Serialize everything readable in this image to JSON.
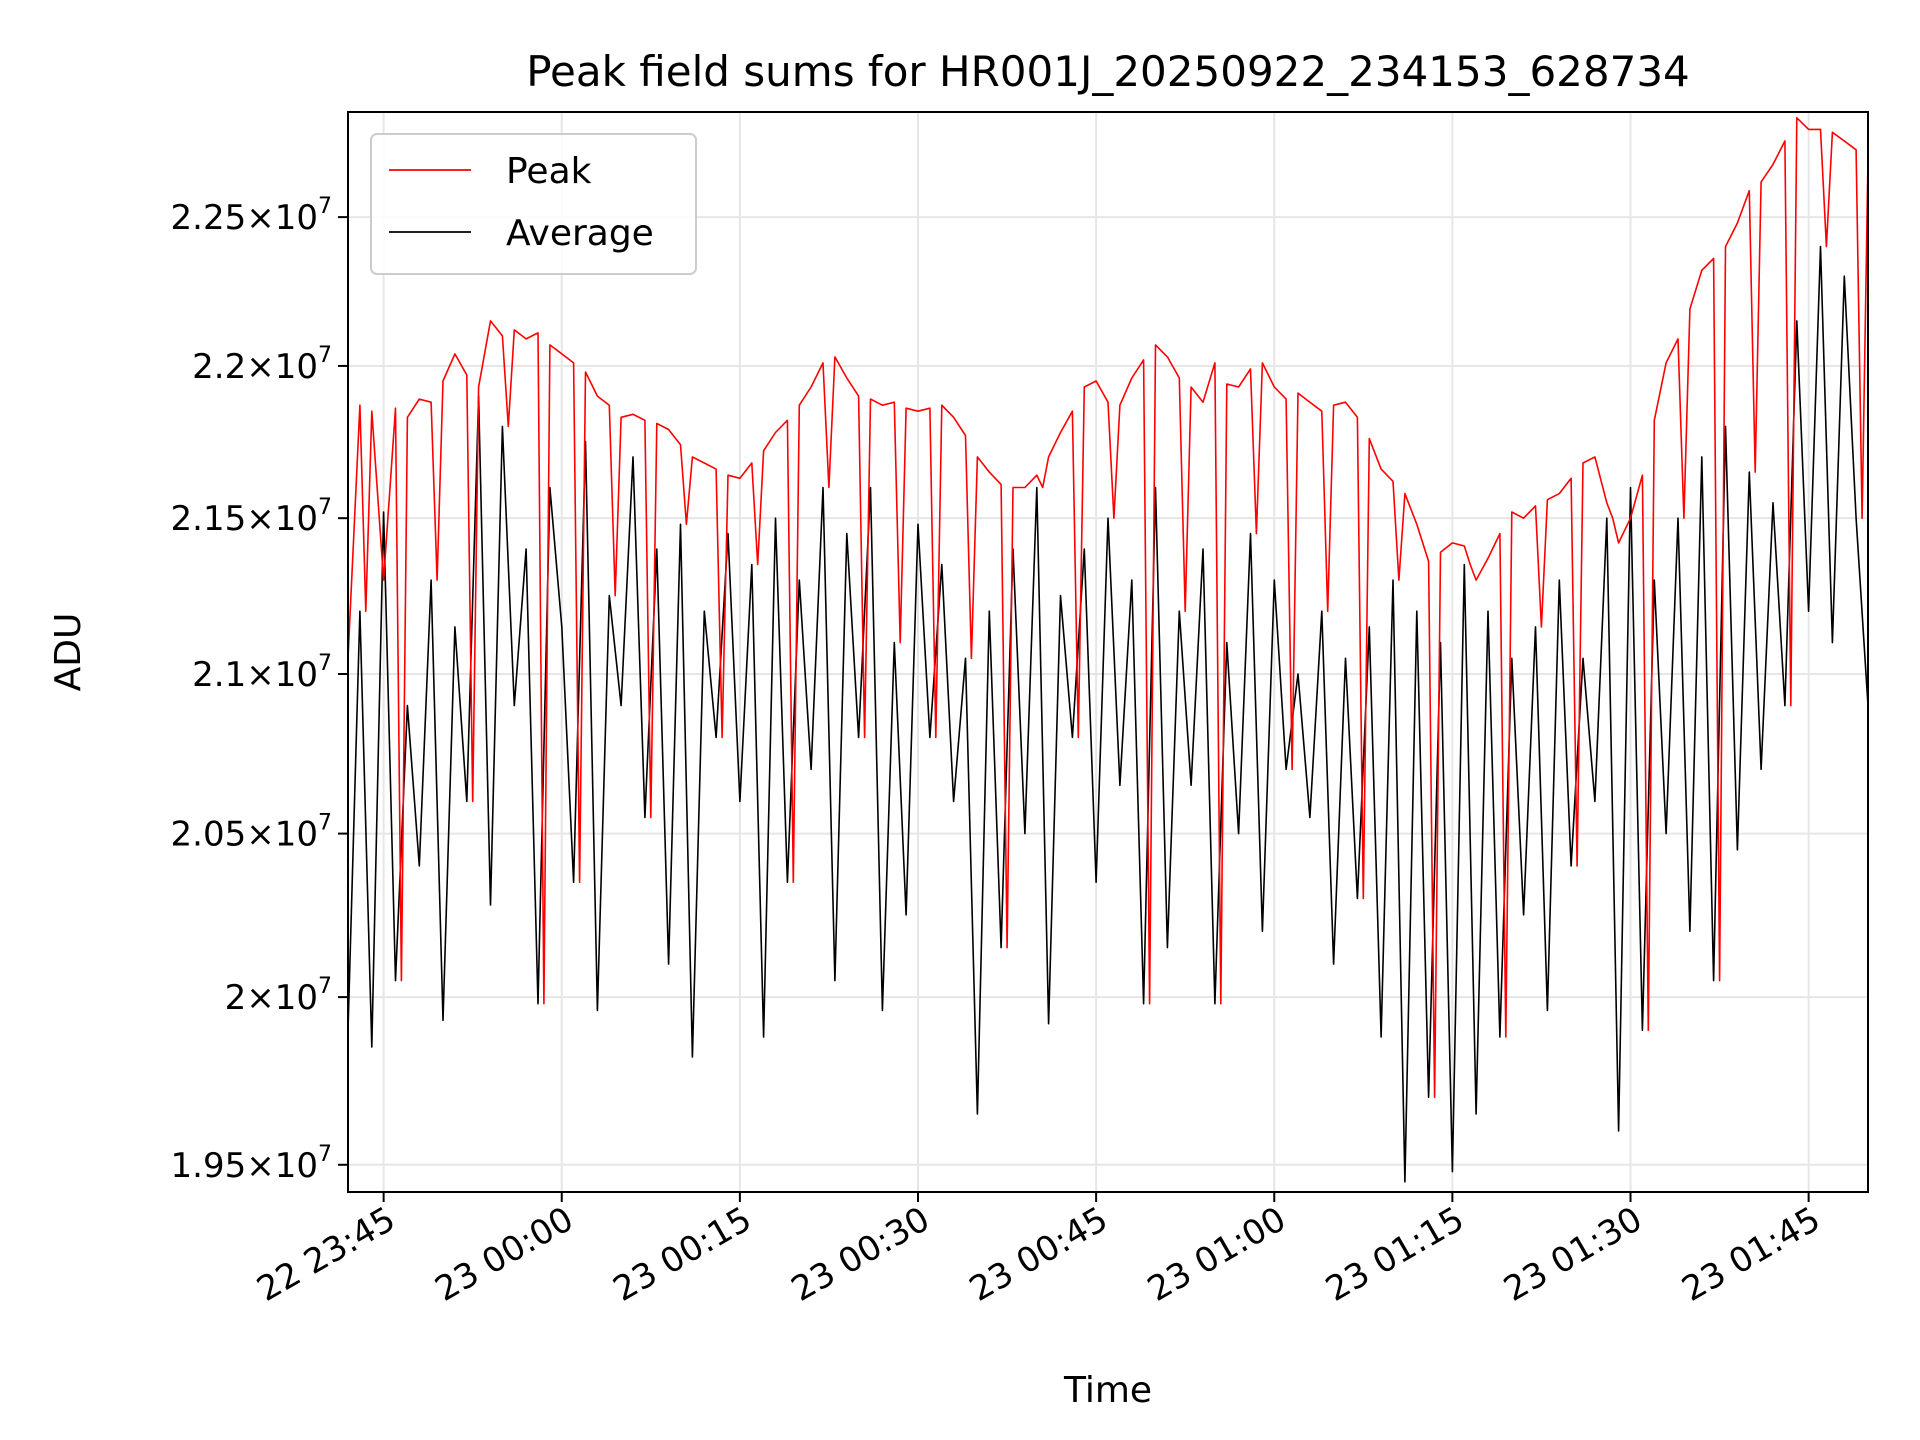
{
  "chart_data": {
    "type": "line",
    "title": "Peak field sums for HR001J_20250922_234153_628734",
    "xlabel": "Time",
    "ylabel": "ADU",
    "grid": true,
    "legend_position": "top-left",
    "y_scale": "log",
    "ylim": [
      19420000,
      22860000
    ],
    "xlim": [
      "2025-09-22 23:42:00",
      "2025-09-23 01:50:00"
    ],
    "x_ticks": [
      {
        "value": "2025-09-22 23:45:00",
        "label": "22 23:45"
      },
      {
        "value": "2025-09-23 00:00:00",
        "label": "23 00:00"
      },
      {
        "value": "2025-09-23 00:15:00",
        "label": "23 00:15"
      },
      {
        "value": "2025-09-23 00:30:00",
        "label": "23 00:30"
      },
      {
        "value": "2025-09-23 00:45:00",
        "label": "23 00:45"
      },
      {
        "value": "2025-09-23 01:00:00",
        "label": "23 01:00"
      },
      {
        "value": "2025-09-23 01:15:00",
        "label": "23 01:15"
      },
      {
        "value": "2025-09-23 01:30:00",
        "label": "23 01:30"
      },
      {
        "value": "2025-09-23 01:45:00",
        "label": "23 01:45"
      }
    ],
    "y_ticks": [
      {
        "value": 19500000,
        "mantissa": "1.95",
        "exponent": "7"
      },
      {
        "value": 20000000,
        "mantissa": "2",
        "exponent": "7"
      },
      {
        "value": 20500000,
        "mantissa": "2.05",
        "exponent": "7"
      },
      {
        "value": 21000000,
        "mantissa": "2.1",
        "exponent": "7"
      },
      {
        "value": 21500000,
        "mantissa": "2.15",
        "exponent": "7"
      },
      {
        "value": 22000000,
        "mantissa": "2.2",
        "exponent": "7"
      },
      {
        "value": 22500000,
        "mantissa": "2.25",
        "exponent": "7"
      }
    ],
    "series": [
      {
        "name": "Peak",
        "color": "#ff0000",
        "x": [
          "2025-09-22 23:42:00",
          "2025-09-22 23:43:00",
          "2025-09-22 23:44:00",
          "2025-09-22 23:45:00",
          "2025-09-22 23:46:00",
          "2025-09-22 23:47:00",
          "2025-09-22 23:48:00",
          "2025-09-22 23:49:00",
          "2025-09-22 23:50:00",
          "2025-09-22 23:51:00",
          "2025-09-22 23:52:00",
          "2025-09-22 23:53:00",
          "2025-09-22 23:54:00",
          "2025-09-22 23:55:00",
          "2025-09-22 23:56:00",
          "2025-09-22 23:57:00",
          "2025-09-22 23:58:00",
          "2025-09-22 23:59:00",
          "2025-09-23 00:00:00",
          "2025-09-23 00:01:00",
          "2025-09-23 00:02:00",
          "2025-09-23 00:03:00",
          "2025-09-23 00:04:00",
          "2025-09-23 00:05:00",
          "2025-09-23 00:06:00",
          "2025-09-23 00:07:00",
          "2025-09-23 00:08:00",
          "2025-09-23 00:09:00",
          "2025-09-23 00:10:00",
          "2025-09-23 00:11:00",
          "2025-09-23 00:12:00",
          "2025-09-23 00:13:00",
          "2025-09-23 00:14:00",
          "2025-09-23 00:15:00",
          "2025-09-23 00:16:00",
          "2025-09-23 00:17:00",
          "2025-09-23 00:18:00",
          "2025-09-23 00:19:00",
          "2025-09-23 00:20:00",
          "2025-09-23 00:21:00",
          "2025-09-23 00:22:00",
          "2025-09-23 00:23:00",
          "2025-09-23 00:24:00",
          "2025-09-23 00:25:00",
          "2025-09-23 00:26:00",
          "2025-09-23 00:27:00",
          "2025-09-23 00:28:00",
          "2025-09-23 00:29:00",
          "2025-09-23 00:30:00",
          "2025-09-23 00:31:00",
          "2025-09-23 00:32:00",
          "2025-09-23 00:33:00",
          "2025-09-23 00:34:00",
          "2025-09-23 00:35:00",
          "2025-09-23 00:36:00",
          "2025-09-23 00:37:00",
          "2025-09-23 00:38:00",
          "2025-09-23 00:39:00",
          "2025-09-23 00:40:00",
          "2025-09-23 00:41:00",
          "2025-09-23 00:42:00",
          "2025-09-23 00:43:00",
          "2025-09-23 00:44:00",
          "2025-09-23 00:45:00",
          "2025-09-23 00:46:00",
          "2025-09-23 00:47:00",
          "2025-09-23 00:48:00",
          "2025-09-23 00:49:00",
          "2025-09-23 00:50:00",
          "2025-09-23 00:51:00",
          "2025-09-23 00:52:00",
          "2025-09-23 00:53:00",
          "2025-09-23 00:54:00",
          "2025-09-23 00:55:00",
          "2025-09-23 00:56:00",
          "2025-09-23 00:57:00",
          "2025-09-23 00:58:00",
          "2025-09-23 00:59:00",
          "2025-09-23 01:00:00",
          "2025-09-23 01:01:00",
          "2025-09-23 01:02:00",
          "2025-09-23 01:03:00",
          "2025-09-23 01:04:00",
          "2025-09-23 01:05:00",
          "2025-09-23 01:06:00",
          "2025-09-23 01:07:00",
          "2025-09-23 01:08:00",
          "2025-09-23 01:09:00",
          "2025-09-23 01:10:00",
          "2025-09-23 01:11:00",
          "2025-09-23 01:12:00",
          "2025-09-23 01:13:00",
          "2025-09-23 01:14:00",
          "2025-09-23 01:15:00",
          "2025-09-23 01:16:00",
          "2025-09-23 01:17:00",
          "2025-09-23 01:18:00",
          "2025-09-23 01:19:00",
          "2025-09-23 01:20:00",
          "2025-09-23 01:21:00",
          "2025-09-23 01:22:00",
          "2025-09-23 01:23:00",
          "2025-09-23 01:24:00",
          "2025-09-23 01:25:00",
          "2025-09-23 01:26:00",
          "2025-09-23 01:27:00",
          "2025-09-23 01:28:00",
          "2025-09-23 01:29:00",
          "2025-09-23 01:30:00",
          "2025-09-23 01:31:00",
          "2025-09-23 01:32:00",
          "2025-09-23 01:33:00",
          "2025-09-23 01:34:00",
          "2025-09-23 01:35:00",
          "2025-09-23 01:36:00",
          "2025-09-23 01:37:00",
          "2025-09-23 01:38:00",
          "2025-09-23 01:39:00",
          "2025-09-23 01:40:00",
          "2025-09-23 01:41:00",
          "2025-09-23 01:42:00",
          "2025-09-23 01:43:00",
          "2025-09-23 01:44:00",
          "2025-09-23 01:45:00",
          "2025-09-23 01:46:00",
          "2025-09-23 01:47:00",
          "2025-09-23 01:48:00",
          "2025-09-23 01:49:00",
          "2025-09-23 01:50:00"
        ],
        "values": [
          21050000,
          21870000,
          21850000,
          21300000,
          21860000,
          21830000,
          21890000,
          21880000,
          21950000,
          22040000,
          21970000,
          21930000,
          22150000,
          22100000,
          22120000,
          22090000,
          22110000,
          22070000,
          22040000,
          22010000,
          21980000,
          21900000,
          21870000,
          21830000,
          21840000,
          21820000,
          21810000,
          21790000,
          21740000,
          21700000,
          21680000,
          21660000,
          21640000,
          21630000,
          21680000,
          21720000,
          21780000,
          21820000,
          21870000,
          21930000,
          22010000,
          22030000,
          21960000,
          21900000,
          21890000,
          21870000,
          21880000,
          21860000,
          21850000,
          21860000,
          21870000,
          21830000,
          21770000,
          21700000,
          21650000,
          21610000,
          21600000,
          21600000,
          21640000,
          21700000,
          21780000,
          21850000,
          21930000,
          21950000,
          21880000,
          21870000,
          21960000,
          22020000,
          22070000,
          22030000,
          21960000,
          21930000,
          21880000,
          22010000,
          21940000,
          21930000,
          21990000,
          22010000,
          21930000,
          21890000,
          21910000,
          21880000,
          21850000,
          21870000,
          21880000,
          21830000,
          21760000,
          21660000,
          21620000,
          21580000,
          21480000,
          21360000,
          21390000,
          21420000,
          21410000,
          21300000,
          21370000,
          21450000,
          21520000,
          21500000,
          21540000,
          21560000,
          21580000,
          21630000,
          21680000,
          21700000,
          21550000,
          21420000,
          21500000,
          21640000,
          21820000,
          22010000,
          22090000,
          22190000,
          22320000,
          22360000,
          22400000,
          22480000,
          22590000,
          22620000,
          22680000,
          22760000,
          22840000,
          22800000,
          22800000,
          22790000,
          22760000,
          22730000,
          22700000
        ],
        "show_dips": true
      },
      {
        "name": "Average",
        "color": "#000000",
        "x": [
          "2025-09-22 23:42:00",
          "2025-09-22 23:43:00",
          "2025-09-22 23:44:00",
          "2025-09-22 23:45:00",
          "2025-09-22 23:46:00",
          "2025-09-22 23:47:00",
          "2025-09-22 23:48:00",
          "2025-09-22 23:49:00",
          "2025-09-22 23:50:00",
          "2025-09-22 23:51:00",
          "2025-09-22 23:52:00",
          "2025-09-22 23:53:00",
          "2025-09-22 23:54:00",
          "2025-09-22 23:55:00",
          "2025-09-22 23:56:00",
          "2025-09-22 23:57:00",
          "2025-09-22 23:58:00",
          "2025-09-22 23:59:00",
          "2025-09-23 00:00:00",
          "2025-09-23 00:01:00",
          "2025-09-23 00:02:00",
          "2025-09-23 00:03:00",
          "2025-09-23 00:04:00",
          "2025-09-23 00:05:00",
          "2025-09-23 00:06:00",
          "2025-09-23 00:07:00",
          "2025-09-23 00:08:00",
          "2025-09-23 00:09:00",
          "2025-09-23 00:10:00",
          "2025-09-23 00:11:00",
          "2025-09-23 00:12:00",
          "2025-09-23 00:13:00",
          "2025-09-23 00:14:00",
          "2025-09-23 00:15:00",
          "2025-09-23 00:16:00",
          "2025-09-23 00:17:00",
          "2025-09-23 00:18:00",
          "2025-09-23 00:19:00",
          "2025-09-23 00:20:00",
          "2025-09-23 00:21:00",
          "2025-09-23 00:22:00",
          "2025-09-23 00:23:00",
          "2025-09-23 00:24:00",
          "2025-09-23 00:25:00",
          "2025-09-23 00:26:00",
          "2025-09-23 00:27:00",
          "2025-09-23 00:28:00",
          "2025-09-23 00:29:00",
          "2025-09-23 00:30:00",
          "2025-09-23 00:31:00",
          "2025-09-23 00:32:00",
          "2025-09-23 00:33:00",
          "2025-09-23 00:34:00",
          "2025-09-23 00:35:00",
          "2025-09-23 00:36:00",
          "2025-09-23 00:37:00",
          "2025-09-23 00:38:00",
          "2025-09-23 00:39:00",
          "2025-09-23 00:40:00",
          "2025-09-23 00:41:00",
          "2025-09-23 00:42:00",
          "2025-09-23 00:43:00",
          "2025-09-23 00:44:00",
          "2025-09-23 00:45:00",
          "2025-09-23 00:46:00",
          "2025-09-23 00:47:00",
          "2025-09-23 00:48:00",
          "2025-09-23 00:49:00",
          "2025-09-23 00:50:00",
          "2025-09-23 00:51:00",
          "2025-09-23 00:52:00",
          "2025-09-23 00:53:00",
          "2025-09-23 00:54:00",
          "2025-09-23 00:55:00",
          "2025-09-23 00:56:00",
          "2025-09-23 00:57:00",
          "2025-09-23 00:58:00",
          "2025-09-23 00:59:00",
          "2025-09-23 01:00:00",
          "2025-09-23 01:01:00",
          "2025-09-23 01:02:00",
          "2025-09-23 01:03:00",
          "2025-09-23 01:04:00",
          "2025-09-23 01:05:00",
          "2025-09-23 01:06:00",
          "2025-09-23 01:07:00",
          "2025-09-23 01:08:00",
          "2025-09-23 01:09:00",
          "2025-09-23 01:10:00",
          "2025-09-23 01:11:00",
          "2025-09-23 01:12:00",
          "2025-09-23 01:13:00",
          "2025-09-23 01:14:00",
          "2025-09-23 01:15:00",
          "2025-09-23 01:16:00",
          "2025-09-23 01:17:00",
          "2025-09-23 01:18:00",
          "2025-09-23 01:19:00",
          "2025-09-23 01:20:00",
          "2025-09-23 01:21:00",
          "2025-09-23 01:22:00",
          "2025-09-23 01:23:00",
          "2025-09-23 01:24:00",
          "2025-09-23 01:25:00",
          "2025-09-23 01:26:00",
          "2025-09-23 01:27:00",
          "2025-09-23 01:28:00",
          "2025-09-23 01:29:00",
          "2025-09-23 01:30:00",
          "2025-09-23 01:31:00",
          "2025-09-23 01:32:00",
          "2025-09-23 01:33:00",
          "2025-09-23 01:34:00",
          "2025-09-23 01:35:00",
          "2025-09-23 01:36:00",
          "2025-09-23 01:37:00",
          "2025-09-23 01:38:00",
          "2025-09-23 01:39:00",
          "2025-09-23 01:40:00",
          "2025-09-23 01:41:00",
          "2025-09-23 01:42:00",
          "2025-09-23 01:43:00",
          "2025-09-23 01:44:00",
          "2025-09-23 01:45:00",
          "2025-09-23 01:46:00",
          "2025-09-23 01:47:00",
          "2025-09-23 01:48:00",
          "2025-09-23 01:49:00",
          "2025-09-23 01:50:00"
        ],
        "values": [
          19900000,
          21200000,
          19850000,
          21520000,
          20050000,
          20900000,
          20400000,
          21300000,
          19930000,
          21150000,
          20600000,
          21900000,
          20280000,
          21800000,
          20900000,
          21400000,
          19980000,
          21600000,
          21150000,
          20350000,
          21750000,
          19960000,
          21250000,
          20900000,
          21700000,
          20550000,
          21400000,
          20100000,
          21480000,
          19820000,
          21200000,
          20800000,
          21450000,
          20600000,
          21350000,
          19880000,
          21500000,
          20350000,
          21300000,
          20700000,
          21600000,
          20050000,
          21450000,
          20800000,
          21600000,
          19960000,
          21100000,
          20250000,
          21480000,
          20800000,
          21350000,
          20600000,
          21050000,
          19650000,
          21200000,
          20150000,
          21400000,
          20500000,
          21600000,
          19920000,
          21250000,
          20800000,
          21400000,
          20350000,
          21500000,
          20650000,
          21300000,
          19980000,
          21600000,
          20150000,
          21200000,
          20650000,
          21400000,
          19980000,
          21100000,
          20500000,
          21450000,
          20200000,
          21300000,
          20700000,
          21000000,
          20550000,
          21200000,
          20100000,
          21050000,
          20300000,
          21150000,
          19880000,
          21300000,
          19450000,
          21200000,
          19700000,
          21100000,
          19480000,
          21350000,
          19650000,
          21200000,
          19880000,
          21050000,
          20250000,
          21150000,
          19960000,
          21300000,
          20400000,
          21050000,
          20600000,
          21500000,
          19600000,
          21600000,
          19900000,
          21300000,
          20500000,
          21500000,
          20200000,
          21700000,
          20050000,
          21800000,
          20450000,
          21650000,
          20700000,
          21550000,
          20900000,
          22150000,
          21200000,
          22400000,
          21100000,
          22300000,
          21500000,
          20900000
        ],
        "show_dips": false
      }
    ]
  }
}
